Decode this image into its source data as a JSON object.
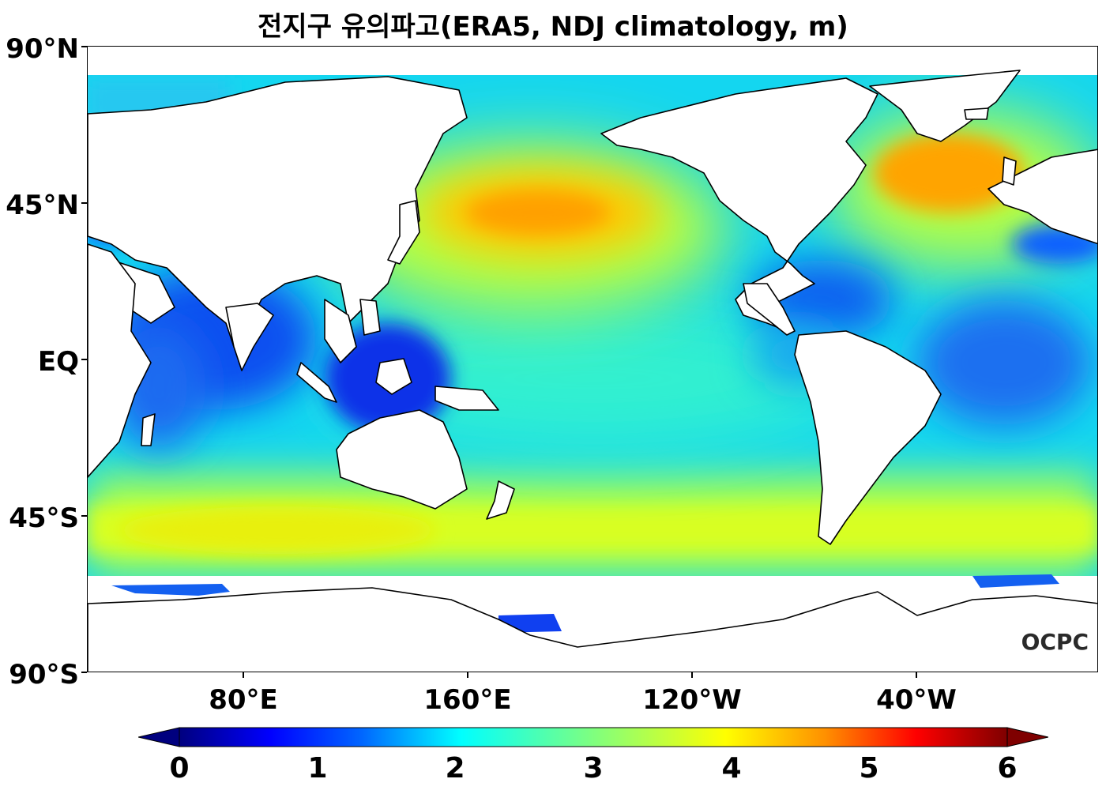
{
  "title": "전지구 유의파고(ERA5, NDJ climatology, m)",
  "latitude_labels": [
    "90°N",
    "45°N",
    "EQ",
    "45°S",
    "90°S"
  ],
  "longitude_labels": [
    "80°E",
    "160°E",
    "120°W",
    "40°W"
  ],
  "colorbar": {
    "ticks": [
      "0",
      "1",
      "2",
      "3",
      "4",
      "5",
      "6"
    ],
    "min": 0,
    "max": 6,
    "extend": "both",
    "colormap": "jet",
    "colors": [
      "#00007f",
      "#0000ff",
      "#007fff",
      "#00ffff",
      "#7fff7f",
      "#ffff00",
      "#ff7f00",
      "#ff0000",
      "#7f0000"
    ]
  },
  "watermark": "OCPC",
  "map": {
    "projection": "PlateCarree",
    "central_longitude": "central Pacific",
    "land_color": "#ffffff",
    "coastline_color": "#000000"
  }
}
